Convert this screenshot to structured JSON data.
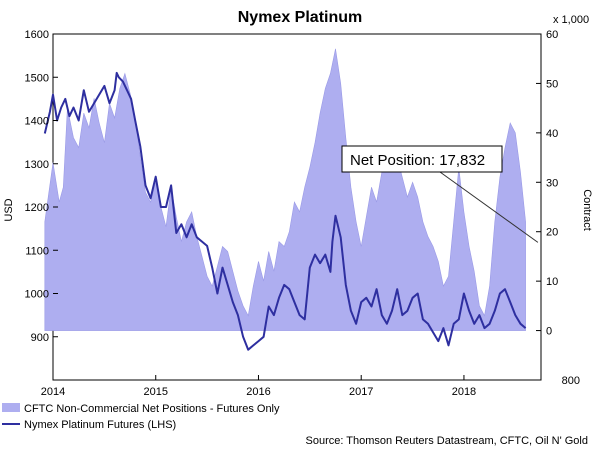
{
  "chart_data": {
    "type": "area",
    "title": "Nymex Platinum",
    "left_axis": {
      "label": "USD",
      "min": 800,
      "max": 1600,
      "ticks": [
        900,
        1000,
        1100,
        1200,
        1300,
        1400,
        1500,
        1600
      ],
      "bottom_tick": "800"
    },
    "right_axis": {
      "label": "Contract",
      "unit_note": "x 1,000",
      "min": -10,
      "max": 60,
      "ticks": [
        0,
        10,
        20,
        30,
        40,
        50,
        60
      ]
    },
    "x_axis": {
      "min": 2014.0,
      "max": 2018.75,
      "ticks": [
        {
          "label": "2014",
          "x": 2014.0
        },
        {
          "label": "2015",
          "x": 2015.0
        },
        {
          "label": "2016",
          "x": 2016.0
        },
        {
          "label": "2017",
          "x": 2017.0
        },
        {
          "label": "2018",
          "x": 2018.0
        }
      ]
    },
    "series": [
      {
        "name": "CFTC Non-Commercial Net Positions - Futures Only",
        "color": "#aeaef0",
        "x": [
          2013.92,
          2014.0,
          2014.06,
          2014.1,
          2014.14,
          2014.2,
          2014.25,
          2014.3,
          2014.35,
          2014.4,
          2014.45,
          2014.5,
          2014.55,
          2014.6,
          2014.65,
          2014.7,
          2014.75,
          2014.8,
          2014.85,
          2014.9,
          2014.95,
          2015.0,
          2015.05,
          2015.1,
          2015.15,
          2015.2,
          2015.25,
          2015.3,
          2015.35,
          2015.4,
          2015.45,
          2015.5,
          2015.55,
          2015.6,
          2015.65,
          2015.7,
          2015.75,
          2015.8,
          2015.85,
          2015.9,
          2015.95,
          2016.0,
          2016.05,
          2016.1,
          2016.15,
          2016.2,
          2016.25,
          2016.3,
          2016.35,
          2016.4,
          2016.45,
          2016.5,
          2016.55,
          2016.6,
          2016.65,
          2016.7,
          2016.75,
          2016.8,
          2016.85,
          2016.9,
          2016.95,
          2017.0,
          2017.05,
          2017.1,
          2017.15,
          2017.2,
          2017.25,
          2017.3,
          2017.35,
          2017.4,
          2017.45,
          2017.5,
          2017.55,
          2017.6,
          2017.65,
          2017.7,
          2017.75,
          2017.8,
          2017.85,
          2017.9,
          2017.95,
          2018.0,
          2018.05,
          2018.1,
          2018.15,
          2018.2,
          2018.25,
          2018.3,
          2018.35,
          2018.4,
          2018.45,
          2018.5,
          2018.55,
          2018.6
        ],
        "values": [
          22,
          34,
          26,
          29,
          45,
          39,
          37,
          44,
          41,
          47,
          42,
          38,
          46,
          43,
          49,
          52,
          48,
          43,
          35,
          28,
          26,
          30,
          25,
          21,
          29,
          23,
          18,
          22,
          24,
          19,
          15,
          11,
          9,
          13,
          17,
          16,
          12,
          8,
          5,
          3,
          9,
          14,
          10,
          16,
          12,
          18,
          17,
          20,
          26,
          24,
          29,
          33,
          38,
          44,
          49,
          52,
          57,
          50,
          39,
          29,
          22,
          17,
          23,
          29,
          26,
          32,
          34,
          37,
          35,
          31,
          27,
          30,
          27,
          22,
          19,
          17,
          14,
          9,
          11,
          22,
          33,
          24,
          17,
          12,
          5,
          3,
          9,
          22,
          31,
          37,
          42,
          40,
          32,
          22
        ]
      },
      {
        "name": "Nymex Platinum Futures (LHS)",
        "color": "#2e2fa0",
        "x": [
          2013.92,
          2013.97,
          2014.0,
          2014.04,
          2014.08,
          2014.12,
          2014.16,
          2014.2,
          2014.25,
          2014.3,
          2014.35,
          2014.4,
          2014.45,
          2014.5,
          2014.55,
          2014.6,
          2014.62,
          2014.64,
          2014.68,
          2014.72,
          2014.76,
          2014.8,
          2014.85,
          2014.9,
          2014.95,
          2015.0,
          2015.05,
          2015.1,
          2015.15,
          2015.2,
          2015.25,
          2015.3,
          2015.35,
          2015.4,
          2015.45,
          2015.5,
          2015.55,
          2015.6,
          2015.65,
          2015.7,
          2015.75,
          2015.8,
          2015.85,
          2015.9,
          2015.95,
          2016.0,
          2016.05,
          2016.1,
          2016.15,
          2016.2,
          2016.25,
          2016.3,
          2016.35,
          2016.4,
          2016.45,
          2016.5,
          2016.55,
          2016.6,
          2016.65,
          2016.7,
          2016.72,
          2016.75,
          2016.8,
          2016.85,
          2016.9,
          2016.95,
          2017.0,
          2017.05,
          2017.1,
          2017.15,
          2017.2,
          2017.25,
          2017.3,
          2017.35,
          2017.4,
          2017.45,
          2017.5,
          2017.55,
          2017.6,
          2017.65,
          2017.7,
          2017.75,
          2017.8,
          2017.85,
          2017.9,
          2017.95,
          2018.0,
          2018.05,
          2018.1,
          2018.15,
          2018.2,
          2018.25,
          2018.3,
          2018.35,
          2018.4,
          2018.45,
          2018.5,
          2018.55,
          2018.6
        ],
        "values": [
          1370,
          1420,
          1460,
          1400,
          1430,
          1450,
          1410,
          1430,
          1400,
          1470,
          1420,
          1440,
          1460,
          1480,
          1440,
          1470,
          1510,
          1500,
          1490,
          1470,
          1450,
          1400,
          1340,
          1250,
          1220,
          1270,
          1200,
          1200,
          1250,
          1140,
          1160,
          1130,
          1160,
          1130,
          1120,
          1110,
          1060,
          1000,
          1060,
          1020,
          980,
          950,
          900,
          870,
          880,
          890,
          900,
          970,
          950,
          990,
          1020,
          1010,
          980,
          950,
          940,
          1060,
          1090,
          1070,
          1090,
          1050,
          1120,
          1180,
          1130,
          1020,
          960,
          930,
          980,
          990,
          970,
          1010,
          950,
          930,
          960,
          1010,
          950,
          960,
          990,
          1000,
          940,
          930,
          910,
          890,
          920,
          880,
          930,
          940,
          1000,
          960,
          930,
          950,
          920,
          930,
          960,
          1000,
          1010,
          980,
          950,
          930,
          920
        ]
      }
    ],
    "callout": {
      "text": "Net Position: 17,832",
      "x": 2018.72,
      "y": 17.832
    },
    "source": "Source: Thomson Reuters Datastream, CFTC, Oil N' Gold",
    "legend_position": "bottom",
    "grid": false
  }
}
